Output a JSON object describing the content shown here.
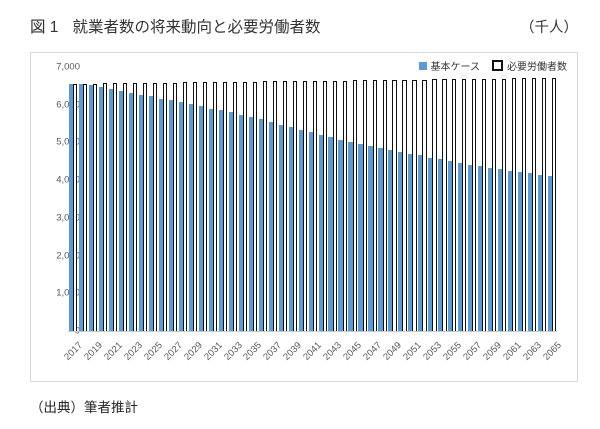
{
  "header": {
    "figure_label": "図 1",
    "title": "就業者数の将来動向と必要労働者数",
    "unit_label": "（千人）"
  },
  "source": "（出典）筆者推計",
  "legend": {
    "items": [
      {
        "label": "基本ケース",
        "swatch": "filled-blue-square"
      },
      {
        "label": "必要労働者数",
        "swatch": "outlined-white-square"
      }
    ]
  },
  "colors": {
    "basic_case_fill": "#5B9BD5",
    "required_border": "#111111",
    "required_fill": "#ffffff",
    "axis_text": "#595959",
    "chart_border": "#d9d9d9"
  },
  "chart_data": {
    "type": "bar",
    "title": "就業者数の将来動向と必要労働者数",
    "unit": "千人",
    "xlabel": "",
    "ylabel": "",
    "ylim": [
      0,
      7000
    ],
    "ytick_step": 1000,
    "ytick_labels": [
      "0",
      "1,000",
      "2,000",
      "3,000",
      "4,000",
      "5,000",
      "6,000",
      "7,000"
    ],
    "grid": false,
    "legend_position": "top-right",
    "categories": [
      2017,
      2018,
      2019,
      2020,
      2021,
      2022,
      2023,
      2024,
      2025,
      2026,
      2027,
      2028,
      2029,
      2030,
      2031,
      2032,
      2033,
      2034,
      2035,
      2036,
      2037,
      2038,
      2039,
      2040,
      2041,
      2042,
      2043,
      2044,
      2045,
      2046,
      2047,
      2048,
      2049,
      2050,
      2051,
      2052,
      2053,
      2054,
      2055,
      2056,
      2057,
      2058,
      2059,
      2060,
      2061,
      2062,
      2063,
      2064,
      2065
    ],
    "xtick_labels": [
      2017,
      2019,
      2021,
      2023,
      2025,
      2027,
      2029,
      2031,
      2033,
      2035,
      2037,
      2039,
      2041,
      2043,
      2045,
      2047,
      2049,
      2051,
      2053,
      2055,
      2057,
      2059,
      2061,
      2063,
      2065
    ],
    "series": [
      {
        "name": "基本ケース",
        "style": "filled",
        "color": "#5B9BD5",
        "values": [
          6550,
          6545,
          6520,
          6470,
          6420,
          6365,
          6315,
          6270,
          6220,
          6165,
          6120,
          6070,
          6015,
          5955,
          5900,
          5855,
          5795,
          5725,
          5675,
          5620,
          5550,
          5470,
          5410,
          5340,
          5270,
          5200,
          5135,
          5075,
          5020,
          4960,
          4900,
          4845,
          4795,
          4740,
          4700,
          4655,
          4600,
          4550,
          4495,
          4450,
          4410,
          4365,
          4320,
          4285,
          4250,
          4215,
          4180,
          4145,
          4110
        ]
      },
      {
        "name": "必要労働者数",
        "style": "outlined",
        "color": "#ffffff",
        "border_color": "#111111",
        "values": [
          6555,
          6558,
          6561,
          6565,
          6568,
          6571,
          6574,
          6578,
          6581,
          6584,
          6587,
          6591,
          6594,
          6597,
          6600,
          6603,
          6607,
          6610,
          6613,
          6616,
          6620,
          6623,
          6626,
          6629,
          6632,
          6636,
          6639,
          6642,
          6645,
          6649,
          6652,
          6655,
          6658,
          6662,
          6665,
          6668,
          6671,
          6674,
          6678,
          6681,
          6684,
          6687,
          6691,
          6694,
          6697,
          6700,
          6703,
          6707,
          6710
        ]
      }
    ]
  }
}
